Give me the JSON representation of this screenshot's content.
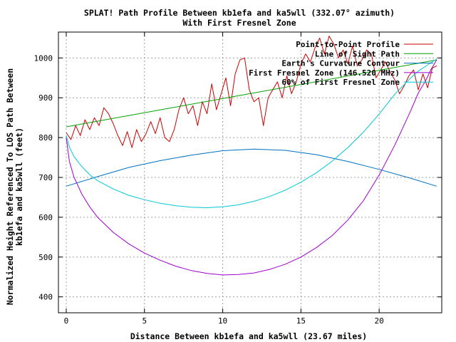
{
  "chart_data": {
    "type": "line",
    "title": "SPLAT! Path Profile Between kb1efa and ka5wll (332.07° azimuth)",
    "subtitle": "With First Fresnel Zone",
    "xlabel": "Distance Between kb1efa and ka5wll (23.67 miles)",
    "ylabel_line1": "Normalized Height Referenced To LOS Path Between",
    "ylabel_line2": "kb1efa and ka5wll (feet)",
    "xlim": [
      -0.5,
      24
    ],
    "ylim": [
      360,
      1065
    ],
    "x_ticks": [
      "0",
      "5",
      "10",
      "15",
      "20"
    ],
    "y_ticks": [
      "400",
      "500",
      "600",
      "700",
      "800",
      "900",
      "1000"
    ],
    "grid": true,
    "legend_position": "top-right",
    "series": [
      {
        "name": "Point-to-Point Profile",
        "color": "#cc0000",
        "x": [
          0,
          0.3,
          0.6,
          0.9,
          1.2,
          1.5,
          1.8,
          2.1,
          2.4,
          2.7,
          3.0,
          3.3,
          3.6,
          3.9,
          4.2,
          4.5,
          4.8,
          5.1,
          5.4,
          5.7,
          6.0,
          6.3,
          6.6,
          6.9,
          7.2,
          7.5,
          7.8,
          8.1,
          8.4,
          8.7,
          9.0,
          9.3,
          9.6,
          9.9,
          10.2,
          10.5,
          10.8,
          11.1,
          11.4,
          11.7,
          12.0,
          12.3,
          12.6,
          12.9,
          13.2,
          13.5,
          13.8,
          14.1,
          14.4,
          14.7,
          15.0,
          15.3,
          15.6,
          15.9,
          16.2,
          16.5,
          16.8,
          17.1,
          17.4,
          17.7,
          18.0,
          18.3,
          18.6,
          18.9,
          19.2,
          19.5,
          19.8,
          20.1,
          20.4,
          20.7,
          21.0,
          21.3,
          21.6,
          21.9,
          22.2,
          22.5,
          22.8,
          23.1,
          23.4,
          23.67
        ],
        "values": [
          812,
          795,
          830,
          805,
          845,
          820,
          850,
          830,
          875,
          860,
          835,
          805,
          780,
          815,
          775,
          820,
          790,
          810,
          840,
          810,
          850,
          800,
          790,
          820,
          870,
          900,
          860,
          880,
          830,
          890,
          860,
          935,
          870,
          910,
          950,
          880,
          960,
          995,
          1000,
          920,
          890,
          900,
          830,
          900,
          920,
          940,
          900,
          955,
          910,
          940,
          985,
          1010,
          990,
          1025,
          1050,
          1010,
          1055,
          1035,
          1000,
          1020,
          985,
          1030,
          980,
          995,
          1020,
          1010,
          950,
          970,
          990,
          965,
          945,
          910,
          930,
          955,
          970,
          920,
          960,
          925,
          975,
          980
        ]
      },
      {
        "name": "Line of Sight Path",
        "color": "#00a000",
        "x": [
          0,
          23.67
        ],
        "values": [
          827,
          995
        ]
      },
      {
        "name": "Earth's Curvature Contour",
        "color": "#0070c0",
        "x": [
          0,
          2,
          4,
          6,
          8,
          10,
          12,
          14,
          16,
          18,
          20,
          22,
          23.67
        ],
        "values": [
          678,
          702,
          725,
          742,
          756,
          767,
          771,
          768,
          757,
          740,
          720,
          698,
          678
        ]
      },
      {
        "name": "First Fresnel Zone (146.520 MHz)",
        "color": "#a000cc",
        "x": [
          0,
          0.2,
          0.5,
          1,
          1.5,
          2,
          3,
          4,
          5,
          6,
          7,
          8,
          9,
          10,
          11,
          12,
          13,
          14,
          15,
          16,
          17,
          18,
          19,
          20,
          21,
          22,
          22.5,
          23,
          23.3,
          23.67
        ],
        "values": [
          800,
          740,
          700,
          658,
          626,
          600,
          562,
          533,
          510,
          492,
          477,
          466,
          459,
          455,
          456,
          460,
          469,
          482,
          500,
          524,
          554,
          593,
          642,
          706,
          781,
          866,
          912,
          945,
          970,
          995
        ]
      },
      {
        "name": "60% of First Fresnel Zone",
        "color": "#00c8d8",
        "x": [
          0,
          0.2,
          0.5,
          1,
          1.5,
          2,
          3,
          4,
          5,
          6,
          7,
          8,
          9,
          10,
          11,
          12,
          13,
          14,
          15,
          16,
          17,
          18,
          19,
          20,
          21,
          22,
          22.5,
          23,
          23.3,
          23.67
        ],
        "values": [
          805,
          776,
          752,
          727,
          707,
          692,
          671,
          655,
          644,
          635,
          629,
          625,
          624,
          626,
          631,
          640,
          652,
          668,
          688,
          712,
          741,
          775,
          814,
          859,
          909,
          949,
          967,
          980,
          988,
          997
        ]
      }
    ]
  }
}
